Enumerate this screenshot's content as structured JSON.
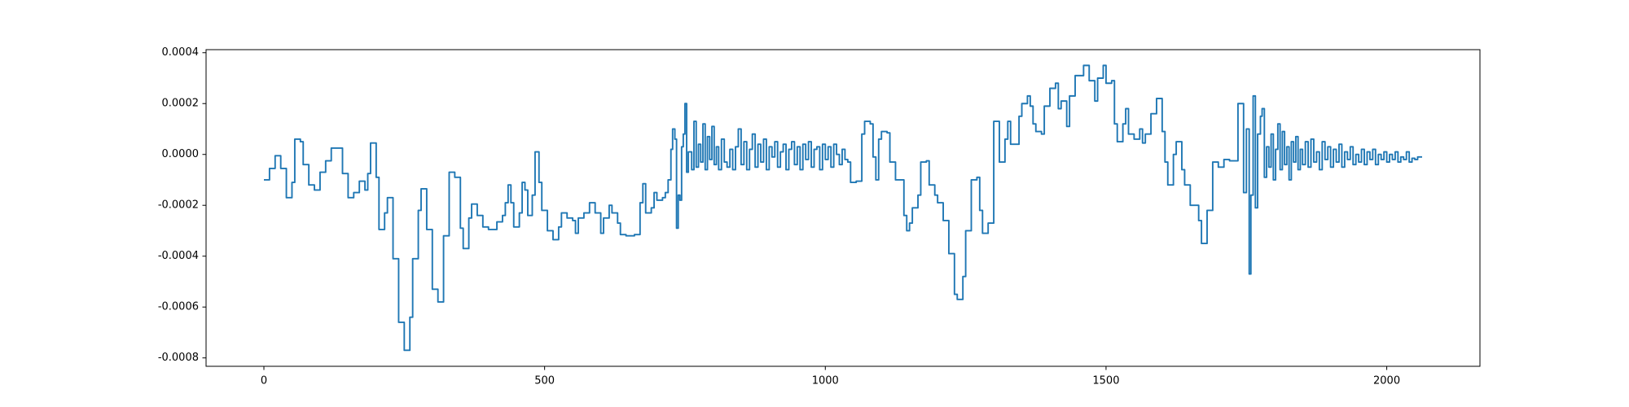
{
  "chart_data": {
    "type": "line",
    "drawstyle": "steps-post",
    "color": "#1f77b4",
    "grid": false,
    "xlim": [
      -103,
      2166
    ],
    "ylim": [
      -0.000833,
      0.000412
    ],
    "xticks": [
      0,
      500,
      1000,
      1500,
      2000
    ],
    "yticks": [
      {
        "value": -0.0008,
        "label": "-0.0008"
      },
      {
        "value": -0.0006,
        "label": "-0.0006"
      },
      {
        "value": -0.0004,
        "label": "-0.0004"
      },
      {
        "value": -0.0002,
        "label": "-0.0002"
      },
      {
        "value": 0,
        "label": "0.0000"
      },
      {
        "value": 0.0002,
        "label": "0.0002"
      },
      {
        "value": 0.0004,
        "label": "0.0004"
      }
    ],
    "x": [
      0,
      10,
      20,
      30,
      40,
      50,
      55,
      65,
      70,
      80,
      90,
      100,
      110,
      120,
      140,
      150,
      160,
      170,
      180,
      185,
      190,
      200,
      205,
      215,
      220,
      230,
      240,
      250,
      260,
      265,
      275,
      280,
      290,
      300,
      310,
      320,
      330,
      340,
      350,
      355,
      365,
      370,
      380,
      390,
      400,
      415,
      425,
      430,
      435,
      440,
      445,
      455,
      460,
      465,
      470,
      478,
      483,
      490,
      495,
      505,
      515,
      525,
      530,
      540,
      550,
      555,
      560,
      570,
      580,
      590,
      600,
      605,
      615,
      620,
      630,
      635,
      645,
      660,
      670,
      675,
      680,
      690,
      695,
      700,
      710,
      715,
      720,
      725,
      728,
      732,
      735,
      738,
      741,
      744,
      747,
      750,
      753,
      756,
      762,
      766,
      770,
      774,
      778,
      782,
      786,
      790,
      794,
      798,
      802,
      806,
      810,
      815,
      820,
      825,
      830,
      835,
      840,
      845,
      850,
      855,
      860,
      865,
      870,
      875,
      880,
      885,
      890,
      895,
      900,
      905,
      910,
      915,
      920,
      925,
      930,
      935,
      940,
      945,
      950,
      955,
      960,
      965,
      970,
      975,
      980,
      985,
      990,
      995,
      1000,
      1005,
      1010,
      1015,
      1020,
      1025,
      1030,
      1035,
      1040,
      1045,
      1055,
      1065,
      1070,
      1080,
      1085,
      1090,
      1095,
      1100,
      1110,
      1115,
      1125,
      1140,
      1145,
      1150,
      1155,
      1165,
      1170,
      1180,
      1185,
      1195,
      1200,
      1210,
      1220,
      1230,
      1235,
      1245,
      1250,
      1260,
      1270,
      1275,
      1280,
      1290,
      1300,
      1310,
      1320,
      1325,
      1330,
      1345,
      1350,
      1360,
      1365,
      1370,
      1375,
      1385,
      1390,
      1400,
      1410,
      1415,
      1420,
      1430,
      1435,
      1445,
      1460,
      1470,
      1480,
      1485,
      1495,
      1500,
      1510,
      1515,
      1520,
      1530,
      1535,
      1540,
      1550,
      1560,
      1565,
      1570,
      1580,
      1590,
      1600,
      1605,
      1610,
      1620,
      1625,
      1635,
      1640,
      1650,
      1665,
      1670,
      1680,
      1690,
      1700,
      1710,
      1720,
      1735,
      1745,
      1750,
      1755,
      1758,
      1762,
      1766,
      1770,
      1775,
      1778,
      1782,
      1786,
      1790,
      1794,
      1798,
      1802,
      1806,
      1810,
      1814,
      1818,
      1822,
      1826,
      1830,
      1834,
      1838,
      1842,
      1846,
      1850,
      1855,
      1860,
      1865,
      1870,
      1875,
      1880,
      1885,
      1890,
      1895,
      1900,
      1905,
      1910,
      1915,
      1920,
      1925,
      1930,
      1935,
      1940,
      1945,
      1950,
      1955,
      1960,
      1965,
      1970,
      1975,
      1980,
      1985,
      1990,
      1995,
      2000,
      2005,
      2010,
      2015,
      2020,
      2025,
      2030,
      2035,
      2040,
      2045,
      2050,
      2055,
      2063
    ],
    "values": [
      -0.0001,
      -5.5e-05,
      -5e-06,
      -5.5e-05,
      -0.00017,
      -0.00011,
      6e-05,
      5e-05,
      -4e-05,
      -0.00012,
      -0.00014,
      -7e-05,
      -2.5e-05,
      2.5e-05,
      -7.5e-05,
      -0.00017,
      -0.00015,
      -0.000105,
      -0.00014,
      -7.5e-05,
      4.5e-05,
      -9e-05,
      -0.000295,
      -0.00023,
      -0.00017,
      -0.00041,
      -0.00066,
      -0.00077,
      -0.00064,
      -0.00041,
      -0.00022,
      -0.000135,
      -0.000295,
      -0.00053,
      -0.00058,
      -0.00032,
      -7e-05,
      -9e-05,
      -0.00029,
      -0.00037,
      -0.00025,
      -0.000195,
      -0.00024,
      -0.000285,
      -0.000295,
      -0.000265,
      -0.00024,
      -0.00019,
      -0.00012,
      -0.00019,
      -0.000285,
      -0.00023,
      -0.00011,
      -0.00014,
      -0.00024,
      -0.00016,
      1e-05,
      -0.00011,
      -0.00022,
      -0.0003,
      -0.000335,
      -0.000285,
      -0.00023,
      -0.00025,
      -0.00026,
      -0.00031,
      -0.00025,
      -0.00023,
      -0.00019,
      -0.00023,
      -0.00031,
      -0.00025,
      -0.0002,
      -0.00023,
      -0.00027,
      -0.000315,
      -0.00032,
      -0.000315,
      -0.00019,
      -0.000115,
      -0.00023,
      -0.00021,
      -0.00015,
      -0.00018,
      -0.00017,
      -0.00015,
      -0.0001,
      2e-05,
      0.0001,
      6e-05,
      -0.00029,
      -0.00016,
      -0.00018,
      3e-05,
      8e-05,
      0.0002,
      -7e-05,
      1e-05,
      -6e-05,
      0.00013,
      -5e-05,
      4e-05,
      -3e-05,
      0.00012,
      -6e-05,
      7e-05,
      -2e-05,
      0.00011,
      -4e-05,
      3e-05,
      -6e-05,
      6e-05,
      -3e-05,
      -5e-05,
      2e-05,
      -6e-05,
      3e-05,
      0.0001,
      -4e-05,
      5e-05,
      -6e-05,
      2e-05,
      8e-05,
      -5e-05,
      4e-05,
      -3e-05,
      6e-05,
      -6e-05,
      3e-05,
      -1e-05,
      5e-05,
      -5e-05,
      1e-05,
      4e-05,
      -6e-05,
      2e-05,
      5e-05,
      -4e-05,
      3e-05,
      -6e-05,
      4e-05,
      -2e-05,
      5e-05,
      -5e-05,
      2e-05,
      3e-05,
      -6e-05,
      4e-05,
      -2e-05,
      3e-05,
      -5e-05,
      4e-05,
      0.0,
      -4e-05,
      2e-05,
      -2e-05,
      -3e-05,
      -0.00011,
      -0.000105,
      8e-05,
      0.00013,
      0.00012,
      -1e-05,
      -0.0001,
      6e-05,
      9e-05,
      8.5e-05,
      -3e-05,
      -0.0001,
      -0.00024,
      -0.0003,
      -0.00027,
      -0.00021,
      -0.00016,
      -3e-05,
      -2.5e-05,
      -0.00012,
      -0.00016,
      -0.00019,
      -0.00026,
      -0.00039,
      -0.00055,
      -0.00057,
      -0.00048,
      -0.0003,
      -0.0001,
      -9e-05,
      -0.00022,
      -0.00031,
      -0.00027,
      0.00013,
      -3e-05,
      6e-05,
      0.00013,
      4e-05,
      0.00015,
      0.0002,
      0.00023,
      0.00019,
      0.00012,
      9e-05,
      8e-05,
      0.00019,
      0.00026,
      0.00028,
      0.00018,
      0.00021,
      0.00011,
      0.00023,
      0.00031,
      0.00035,
      0.00029,
      0.00021,
      0.0003,
      0.00035,
      0.00028,
      0.00029,
      0.00012,
      5e-05,
      0.00012,
      0.00018,
      8e-05,
      6e-05,
      0.0001,
      4.5e-05,
      8e-05,
      0.00016,
      0.00022,
      9e-05,
      -3e-05,
      -0.00012,
      0.0,
      5e-05,
      -6e-05,
      -0.00012,
      -0.0002,
      -0.00026,
      -0.00035,
      -0.00022,
      -3e-05,
      -5e-05,
      -2e-05,
      -2.5e-05,
      0.0002,
      -0.00015,
      0.0001,
      -0.00047,
      -0.00016,
      0.00023,
      -0.00021,
      8e-05,
      0.00015,
      0.00018,
      -9e-05,
      3e-05,
      -5e-05,
      8e-05,
      -0.0001,
      2e-05,
      0.00012,
      -6e-05,
      9e-05,
      -4e-05,
      3e-05,
      -0.0001,
      5e-05,
      -3e-05,
      7e-05,
      -6e-05,
      2e-05,
      -4e-05,
      5e-05,
      -5e-05,
      6e-05,
      -3e-05,
      1e-05,
      -6e-05,
      5e-05,
      -2e-05,
      3e-05,
      -5e-05,
      2e-05,
      -3e-05,
      4e-05,
      -5e-05,
      1e-05,
      -2e-05,
      3e-05,
      -4e-05,
      0.0,
      -3e-05,
      2e-05,
      -4e-05,
      1e-05,
      -2e-05,
      2e-05,
      -4e-05,
      0.0,
      -2e-05,
      1e-05,
      -3e-05,
      0.0,
      -2e-05,
      1e-05,
      -3e-05,
      -1e-05,
      -2e-05,
      1e-05,
      -3e-05,
      -1.5e-05,
      -2e-05,
      -1e-05,
      -1e-05
    ]
  }
}
